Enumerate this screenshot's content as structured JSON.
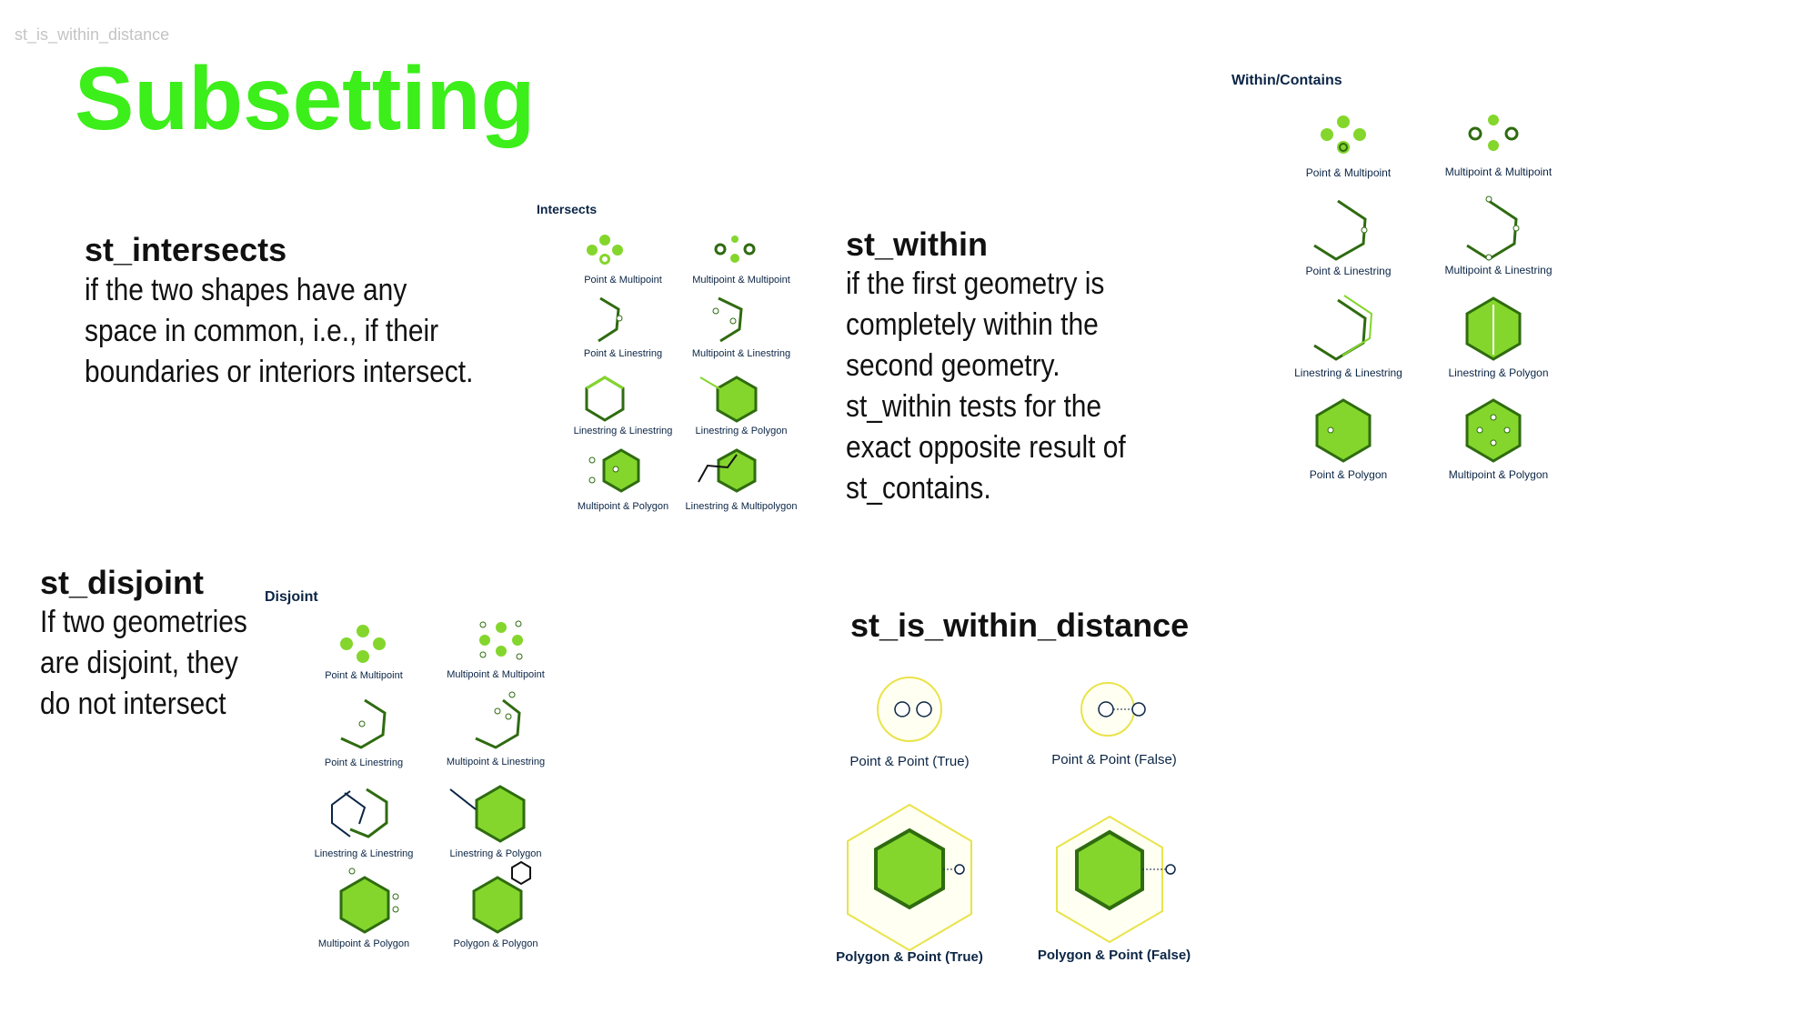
{
  "slide_label": "st_is_within_distance",
  "title": "Subsetting",
  "colors": {
    "title_green": "#3cee1a",
    "shape_fill": "#84d62c",
    "shape_stroke": "#2f6b10",
    "caption_navy": "#0b2545",
    "buffer_yellow": "#e9e34a"
  },
  "intersects": {
    "name": "st_intersects",
    "description": "if the two shapes have any space in common, i.e., if their boundaries or interiors intersect.",
    "panel_title": "Intersects",
    "captions": [
      "Point & Multipoint",
      "Multipoint & Multipoint",
      "Point & Linestring",
      "Multipoint & Linestring",
      "Linestring & Linestring",
      "Linestring & Polygon",
      "Multipoint & Polygon",
      "Linestring & Multipolygon"
    ]
  },
  "within": {
    "name": "st_within",
    "description": "if the first geometry is completely within the second geometry. st_within tests for the exact opposite result of st_contains.",
    "panel_title": "Within/Contains",
    "captions": [
      "Point & Multipoint",
      "Multipoint & Multipoint",
      "Point & Linestring",
      "Multipoint & Linestring",
      "Linestring & Linestring",
      "Linestring & Polygon",
      "Point & Polygon",
      "Multipoint & Polygon"
    ]
  },
  "disjoint": {
    "name": "st_disjoint",
    "description": "If two geometries are disjoint, they do not intersect",
    "panel_title": "Disjoint",
    "captions": [
      "Point & Multipoint",
      "Multipoint & Multipoint",
      "Point & Linestring",
      "Multipoint & Linestring",
      "Linestring & Linestring",
      "Linestring & Polygon",
      "Multipoint & Polygon",
      "Polygon & Polygon"
    ]
  },
  "distance": {
    "name": "st_is_within_distance",
    "captions": [
      "Point & Point (True)",
      "Point & Point (False)",
      "Polygon & Point (True)",
      "Polygon & Point (False)"
    ]
  }
}
